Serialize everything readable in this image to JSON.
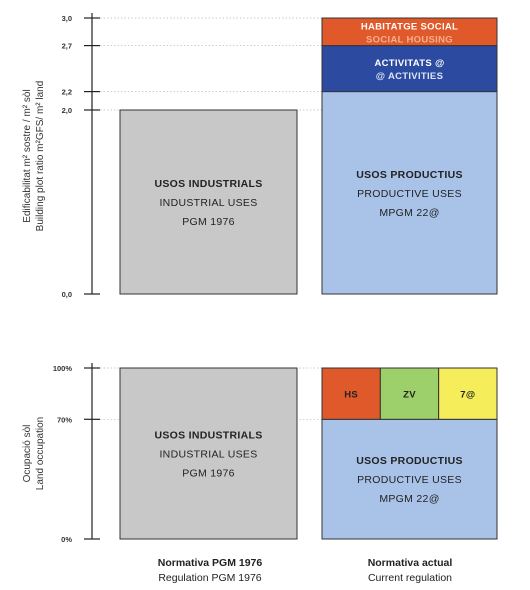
{
  "chart_data": [
    {
      "type": "bar",
      "ylabel": [
        "Edificabilitat m² sostre / m² sòl",
        "Building plot ratio m²GFS/ m² land"
      ],
      "ylim": [
        0,
        3.0
      ],
      "ticks": [
        "3,0",
        "2,7",
        "2,2",
        "2,0",
        "0,0"
      ],
      "tick_values": [
        3.0,
        2.7,
        2.2,
        2.0,
        0.0
      ],
      "bars": [
        {
          "segments": [
            {
              "from": 0,
              "to": 2.0,
              "color": "#c8c8c8",
              "lines": [
                "USOS INDUSTRIALS",
                "INDUSTRIAL USES",
                "PGM 1976"
              ]
            }
          ]
        },
        {
          "segments": [
            {
              "from": 0,
              "to": 2.2,
              "color": "#a9c3e8",
              "lines": [
                "USOS PRODUCTIUS",
                "PRODUCTIVE USES",
                "MPGM 22@"
              ]
            },
            {
              "from": 2.2,
              "to": 2.7,
              "color": "#2b4aa0",
              "lines": [
                "ACTIVITATS @",
                "@ ACTIVITIES"
              ]
            },
            {
              "from": 2.7,
              "to": 3.0,
              "color": "#e0592a",
              "lines": [
                "HABITATGE SOCIAL",
                "SOCIAL HOUSING"
              ]
            }
          ]
        }
      ]
    },
    {
      "type": "bar",
      "ylabel": [
        "Ocupació sòl",
        "Land occupation"
      ],
      "ylim": [
        0,
        100
      ],
      "ticks": [
        "100%",
        "70%",
        "0%"
      ],
      "tick_values": [
        100,
        70,
        0
      ],
      "bars": [
        {
          "segments": [
            {
              "from": 0,
              "to": 100,
              "color": "#c8c8c8",
              "lines": [
                "USOS INDUSTRIALS",
                "INDUSTRIAL USES",
                "PGM 1976"
              ]
            }
          ]
        },
        {
          "segments": [
            {
              "from": 0,
              "to": 70,
              "color": "#a9c3e8",
              "lines": [
                "USOS PRODUCTIUS",
                "PRODUCTIVE USES",
                "MPGM 22@"
              ]
            }
          ],
          "top_cells": [
            {
              "label": "HS",
              "color": "#e0592a"
            },
            {
              "label": "ZV",
              "color": "#9dcf6a"
            },
            {
              "label": "7@",
              "color": "#f5ee5a"
            }
          ]
        }
      ]
    }
  ],
  "categories": [
    [
      "Normativa PGM 1976",
      "Regulation PGM 1976"
    ],
    [
      "Normativa actual",
      "Current regulation"
    ]
  ]
}
